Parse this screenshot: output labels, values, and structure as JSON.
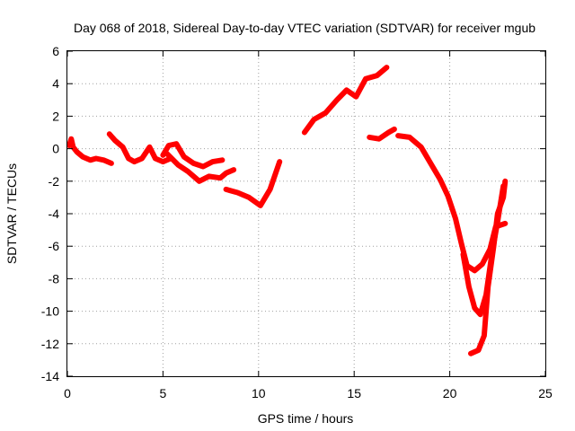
{
  "chart_data": {
    "type": "scatter",
    "title": "Day 068 of 2018, Sidereal Day-to-day VTEC variation (SDTVAR) for receiver mgub",
    "xlabel": "GPS time / hours",
    "ylabel": "SDTVAR / TECUs",
    "xlim": [
      0,
      25
    ],
    "ylim": [
      -14,
      6
    ],
    "x_ticks": [
      "0",
      "5",
      "10",
      "15",
      "20",
      "25"
    ],
    "y_ticks": [
      "-14",
      "-12",
      "-10",
      "-8",
      "-6",
      "-4",
      "-2",
      "0",
      "2",
      "4",
      "6"
    ],
    "grid": true,
    "marker_color": "#ff0000",
    "series": [
      {
        "points": [
          [
            0.1,
            0.2
          ],
          [
            0.2,
            0.6
          ],
          [
            0.3,
            0.1
          ],
          [
            0.5,
            -0.2
          ],
          [
            0.8,
            -0.5
          ],
          [
            1.2,
            -0.7
          ],
          [
            1.5,
            -0.6
          ],
          [
            1.9,
            -0.7
          ],
          [
            2.3,
            -0.9
          ]
        ]
      },
      {
        "points": [
          [
            2.2,
            0.9
          ],
          [
            2.5,
            0.5
          ],
          [
            2.9,
            0.1
          ],
          [
            3.2,
            -0.6
          ],
          [
            3.5,
            -0.8
          ],
          [
            3.9,
            -0.6
          ],
          [
            4.3,
            0.1
          ],
          [
            4.6,
            -0.6
          ],
          [
            5.0,
            -0.8
          ],
          [
            5.4,
            -0.6
          ]
        ]
      },
      {
        "points": [
          [
            5.0,
            -0.4
          ],
          [
            5.3,
            0.2
          ],
          [
            5.7,
            0.3
          ],
          [
            6.1,
            -0.5
          ],
          [
            6.6,
            -0.9
          ],
          [
            7.1,
            -1.1
          ],
          [
            7.6,
            -0.8
          ],
          [
            8.1,
            -0.7
          ]
        ]
      },
      {
        "points": [
          [
            5.2,
            -0.3
          ],
          [
            5.8,
            -1.0
          ],
          [
            6.3,
            -1.4
          ],
          [
            6.9,
            -2.0
          ],
          [
            7.4,
            -1.7
          ],
          [
            8.0,
            -1.8
          ],
          [
            8.3,
            -1.5
          ],
          [
            8.7,
            -1.3
          ]
        ]
      },
      {
        "points": [
          [
            8.3,
            -2.5
          ],
          [
            8.9,
            -2.7
          ],
          [
            9.5,
            -3.0
          ],
          [
            10.1,
            -3.5
          ],
          [
            10.6,
            -2.5
          ],
          [
            11.1,
            -0.8
          ]
        ]
      },
      {
        "points": [
          [
            12.4,
            1.0
          ],
          [
            12.9,
            1.8
          ],
          [
            13.5,
            2.2
          ],
          [
            14.1,
            3.0
          ],
          [
            14.6,
            3.6
          ],
          [
            15.1,
            3.2
          ],
          [
            15.6,
            4.3
          ],
          [
            16.2,
            4.5
          ],
          [
            16.7,
            5.0
          ]
        ]
      },
      {
        "points": [
          [
            15.8,
            0.7
          ],
          [
            16.3,
            0.6
          ],
          [
            16.8,
            1.0
          ],
          [
            17.1,
            1.2
          ]
        ]
      },
      {
        "points": [
          [
            17.3,
            0.8
          ],
          [
            17.9,
            0.7
          ],
          [
            18.5,
            0.1
          ],
          [
            19.0,
            -0.9
          ],
          [
            19.5,
            -1.9
          ],
          [
            19.9,
            -2.9
          ],
          [
            20.3,
            -4.3
          ],
          [
            20.6,
            -5.8
          ],
          [
            20.9,
            -7.2
          ],
          [
            21.3,
            -7.5
          ],
          [
            21.7,
            -7.1
          ],
          [
            22.1,
            -6.2
          ],
          [
            22.4,
            -4.8
          ],
          [
            22.9,
            -4.6
          ]
        ]
      },
      {
        "points": [
          [
            20.7,
            -6.5
          ],
          [
            21.0,
            -8.5
          ],
          [
            21.3,
            -9.8
          ],
          [
            21.6,
            -10.2
          ],
          [
            21.9,
            -9.0
          ],
          [
            22.2,
            -6.5
          ],
          [
            22.5,
            -4.5
          ],
          [
            22.8,
            -2.3
          ]
        ]
      },
      {
        "points": [
          [
            21.1,
            -12.6
          ],
          [
            21.5,
            -12.4
          ],
          [
            21.8,
            -11.5
          ],
          [
            22.0,
            -8.5
          ],
          [
            22.3,
            -6.0
          ],
          [
            22.5,
            -4.0
          ],
          [
            22.8,
            -3.0
          ],
          [
            22.9,
            -2.0
          ]
        ]
      }
    ]
  }
}
